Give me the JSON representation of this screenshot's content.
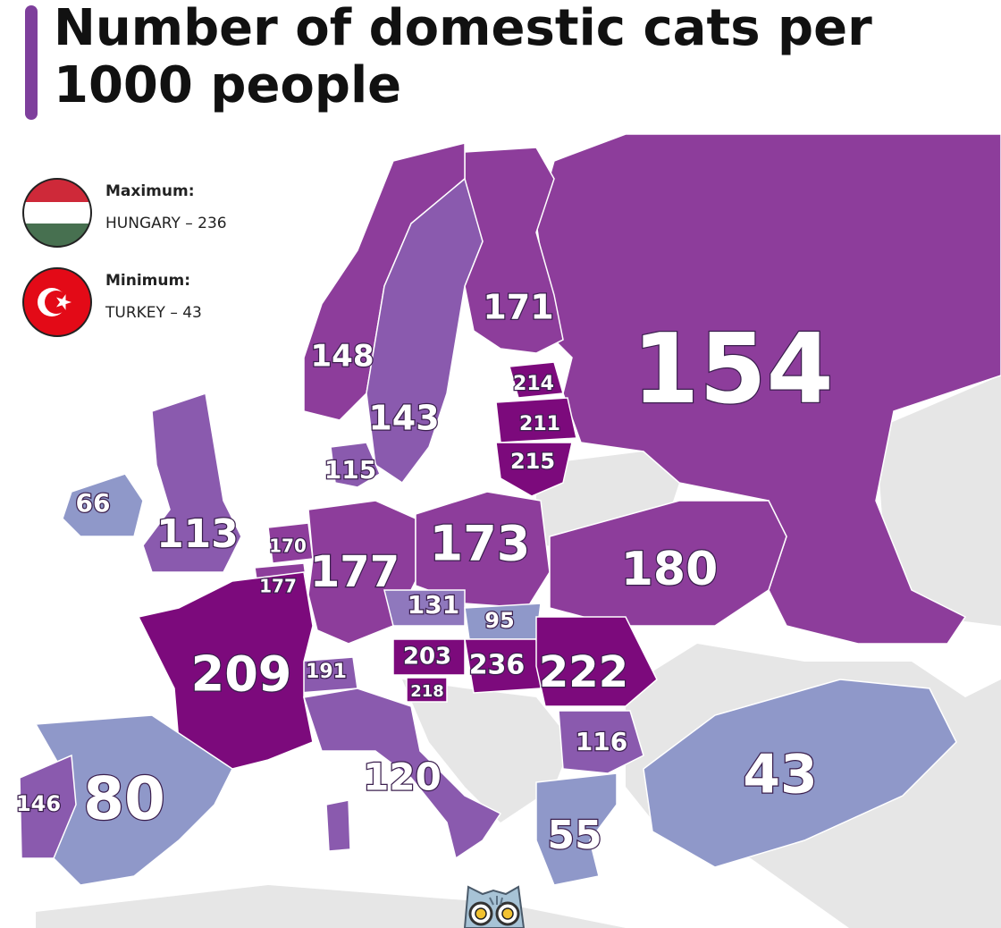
{
  "title": "Number of domestic cats per 1000 people",
  "legend": {
    "maximum": {
      "label": "Maximum:",
      "value": "HUNGARY – 236",
      "flag_icon": "hungary-flag-icon",
      "colors": [
        "#ce2939",
        "#ffffff",
        "#477050"
      ]
    },
    "minimum": {
      "label": "Minimum:",
      "value": "TURKEY – 43",
      "flag_icon": "turkey-flag-icon",
      "colors": [
        "#e30a17",
        "#ffffff"
      ]
    }
  },
  "colors": {
    "high": "#7c0a7c",
    "upper_mid": "#8d3d9b",
    "mid": "#8a5aae",
    "low_mid": "#8f78bd",
    "low": "#8f98c9",
    "land_no_data": "#e6e6e6",
    "sea": "#ffffff"
  },
  "countries": [
    {
      "name": "Russia",
      "label": "154"
    },
    {
      "name": "Finland",
      "label": "171"
    },
    {
      "name": "Norway",
      "label": "148"
    },
    {
      "name": "Sweden",
      "label": "143"
    },
    {
      "name": "Denmark",
      "label": "115"
    },
    {
      "name": "Estonia",
      "label": "214"
    },
    {
      "name": "Latvia",
      "label": "211"
    },
    {
      "name": "Lithuania",
      "label": "215"
    },
    {
      "name": "Ireland",
      "label": "66"
    },
    {
      "name": "United Kingdom",
      "label": "113"
    },
    {
      "name": "Netherlands",
      "label": "170"
    },
    {
      "name": "Belgium",
      "label": "177"
    },
    {
      "name": "Germany",
      "label": "177"
    },
    {
      "name": "Poland",
      "label": "173"
    },
    {
      "name": "Ukraine",
      "label": "180"
    },
    {
      "name": "Czechia",
      "label": "131"
    },
    {
      "name": "Slovakia",
      "label": "95"
    },
    {
      "name": "Austria",
      "label": "203"
    },
    {
      "name": "Hungary",
      "label": "236"
    },
    {
      "name": "Romania",
      "label": "222"
    },
    {
      "name": "Slovenia",
      "label": "218"
    },
    {
      "name": "Switzerland",
      "label": "191"
    },
    {
      "name": "France",
      "label": "209"
    },
    {
      "name": "Italy",
      "label": "120"
    },
    {
      "name": "Bulgaria",
      "label": "116"
    },
    {
      "name": "Greece",
      "label": "55"
    },
    {
      "name": "Turkey",
      "label": "43"
    },
    {
      "name": "Spain",
      "label": "80"
    },
    {
      "name": "Portugal",
      "label": "146"
    }
  ],
  "mascot_icon": "cat-face-icon"
}
